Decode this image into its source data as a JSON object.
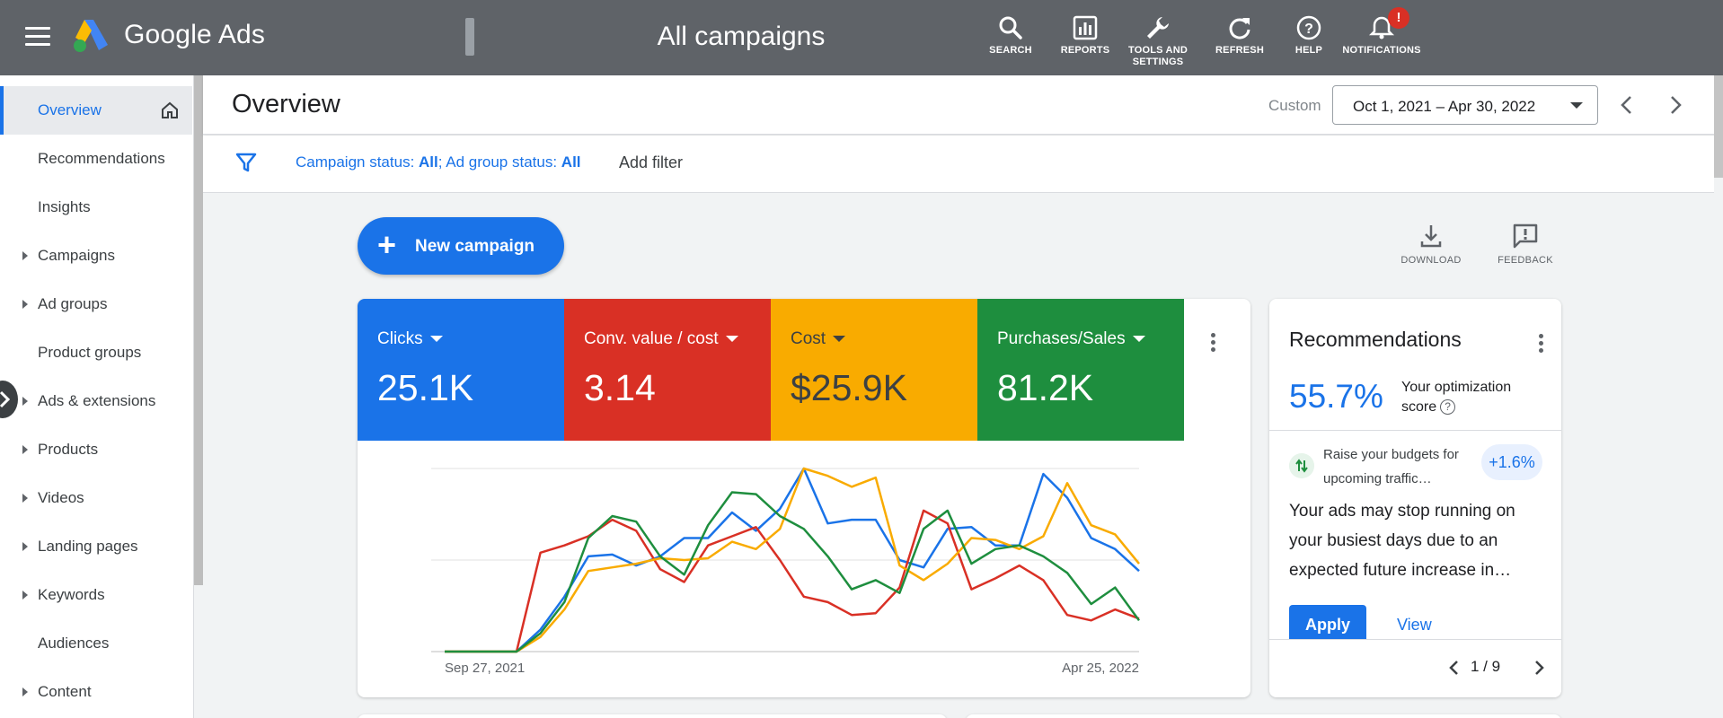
{
  "app": {
    "product_name": "Google Ads",
    "page_heading": "All campaigns"
  },
  "top_actions": [
    {
      "id": "search",
      "label": "SEARCH"
    },
    {
      "id": "reports",
      "label": "REPORTS"
    },
    {
      "id": "tools",
      "label": "TOOLS AND SETTINGS"
    },
    {
      "id": "refresh",
      "label": "REFRESH"
    },
    {
      "id": "help",
      "label": "HELP"
    },
    {
      "id": "notifications",
      "label": "NOTIFICATIONS",
      "badge": "!"
    }
  ],
  "sidebar": {
    "items": [
      {
        "label": "Overview",
        "active": true,
        "has_caret": false
      },
      {
        "label": "Recommendations",
        "has_caret": false
      },
      {
        "label": "Insights",
        "has_caret": false
      },
      {
        "label": "Campaigns",
        "has_caret": true
      },
      {
        "label": "Ad groups",
        "has_caret": true
      },
      {
        "label": "Product groups",
        "has_caret": false
      },
      {
        "label": "Ads & extensions",
        "has_caret": true
      },
      {
        "label": "Products",
        "has_caret": true
      },
      {
        "label": "Videos",
        "has_caret": true
      },
      {
        "label": "Landing pages",
        "has_caret": true
      },
      {
        "label": "Keywords",
        "has_caret": true
      },
      {
        "label": "Audiences",
        "has_caret": false
      },
      {
        "label": "Content",
        "has_caret": true
      }
    ]
  },
  "header": {
    "title": "Overview",
    "custom_label": "Custom",
    "date_range": "Oct 1, 2021 – Apr 30, 2022"
  },
  "filter": {
    "campaign_status_label": "Campaign status: ",
    "campaign_status_value": "All",
    "separator": "; ",
    "ad_group_status_label": "Ad group status: ",
    "ad_group_status_value": "All",
    "add_filter": "Add filter"
  },
  "content": {
    "new_campaign": "New campaign",
    "download": "DOWNLOAD",
    "feedback": "FEEDBACK"
  },
  "metrics": [
    {
      "id": "clicks",
      "label": "Clicks",
      "value": "25.1K",
      "color": "#1a73e8"
    },
    {
      "id": "conv",
      "label": "Conv. value / cost",
      "value": "3.14",
      "color": "#d93025"
    },
    {
      "id": "cost",
      "label": "Cost",
      "value": "$25.9K",
      "color": "#f9ab00"
    },
    {
      "id": "purchases",
      "label": "Purchases/Sales",
      "value": "81.2K",
      "color": "#1e8e3e"
    }
  ],
  "chart_data": {
    "type": "line",
    "x_start_label": "Sep 27, 2021",
    "x_end_label": "Apr 25, 2022",
    "ylim": [
      0,
      100
    ],
    "grid": true,
    "series": [
      {
        "name": "Clicks",
        "color": "#1a73e8",
        "values": [
          0,
          0,
          0,
          0,
          12,
          30,
          52,
          53,
          47,
          52,
          62,
          62,
          76,
          66,
          78,
          100,
          70,
          72,
          72,
          50,
          46,
          67,
          68,
          58,
          58,
          97,
          84,
          62,
          56,
          44
        ]
      },
      {
        "name": "Conv. value / cost",
        "color": "#d93025",
        "values": [
          0,
          0,
          0,
          0,
          54,
          58,
          63,
          72,
          66,
          45,
          38,
          58,
          63,
          68,
          50,
          30,
          27,
          20,
          21,
          35,
          77,
          70,
          34,
          40,
          47,
          39,
          20,
          17,
          23,
          18
        ]
      },
      {
        "name": "Cost",
        "color": "#f9ab00",
        "values": [
          0,
          0,
          0,
          0,
          8,
          23,
          44,
          46,
          48,
          51,
          50,
          51,
          60,
          56,
          67,
          100,
          96,
          90,
          95,
          47,
          39,
          48,
          62,
          61,
          56,
          63,
          92,
          69,
          64,
          48
        ]
      },
      {
        "name": "Purchases/Sales",
        "color": "#1e8e3e",
        "values": [
          0,
          0,
          0,
          0,
          10,
          27,
          62,
          74,
          71,
          52,
          42,
          69,
          87,
          86,
          74,
          67,
          52,
          34,
          39,
          32,
          67,
          77,
          48,
          56,
          58,
          52,
          43,
          26,
          35,
          17
        ]
      }
    ]
  },
  "recommendations": {
    "title": "Recommendations",
    "score": "55.7%",
    "score_label": "Your optimization score",
    "tip": "Raise your budgets for upcoming traffic…",
    "tip_change": "+1.6%",
    "body": "Your ads may stop running on your busiest days due to an expected future increase in…",
    "apply": "Apply",
    "view": "View",
    "pager": "1 / 9"
  }
}
